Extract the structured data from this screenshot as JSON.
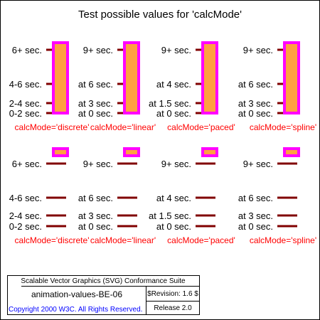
{
  "title": "Test possible values for 'calcMode'",
  "colors": {
    "border": "#000000",
    "tick": "#800000",
    "bar_fill": "#ffa040",
    "bar_stroke": "#ff00ff",
    "caption": "#ff0000",
    "copyright": "#0000ff"
  },
  "sections": [
    {
      "name": "top",
      "columns": [
        {
          "calc_mode": "calcMode='discrete'",
          "labels": {
            "top": "6+ sec.",
            "third": "4-6 sec.",
            "second": "2-4 sec.",
            "base": "0-2 sec."
          },
          "bar_level": 1.0
        },
        {
          "calc_mode": "calcMode='linear'",
          "labels": {
            "top": "9+ sec.",
            "third": "at 6 sec.",
            "second": "at 3 sec.",
            "base": "at 0 sec."
          },
          "bar_level": 1.0
        },
        {
          "calc_mode": "calcMode='paced'",
          "labels": {
            "top": "9+ sec.",
            "third": "at 4 sec.",
            "second": "at 1.5 sec.",
            "base": "at 0 sec."
          },
          "bar_level": 1.0
        },
        {
          "calc_mode": "calcMode='spline'",
          "labels": {
            "top": "9+ sec.",
            "third": "at 6 sec.",
            "second": "at 3 sec.",
            "base": "at 0 sec."
          },
          "bar_level": 1.0
        }
      ]
    },
    {
      "name": "bottom",
      "columns": [
        {
          "calc_mode": "calcMode='discrete'",
          "labels": {
            "top": "6+ sec.",
            "third": "4-6 sec.",
            "second": "2-4 sec.",
            "base": "0-2 sec."
          },
          "bar_level": 1.0
        },
        {
          "calc_mode": "calcMode='linear'",
          "labels": {
            "top": "9+ sec.",
            "third": "at 6 sec.",
            "second": "at 3 sec.",
            "base": "at 0 sec."
          },
          "bar_level": 1.0
        },
        {
          "calc_mode": "calcMode='paced'",
          "labels": {
            "top": "9+ sec.",
            "third": "at 4 sec.",
            "second": "at 1.5 sec.",
            "base": "at 0 sec."
          },
          "bar_level": 1.0
        },
        {
          "calc_mode": "calcMode='spline'",
          "labels": {
            "top": "9+ sec.",
            "third": "at 6 sec.",
            "second": "at 3 sec.",
            "base": "at 0 sec."
          },
          "bar_level": 1.0
        }
      ]
    }
  ],
  "footer": {
    "suite": "Scalable Vector Graphics (SVG) Conformance Suite",
    "test_name": "animation-values-BE-06",
    "revision": "$Revision: 1.6 $",
    "copyright": "Copyright 2000 W3C. All Rights Reserved.",
    "release": "Release 2.0"
  }
}
